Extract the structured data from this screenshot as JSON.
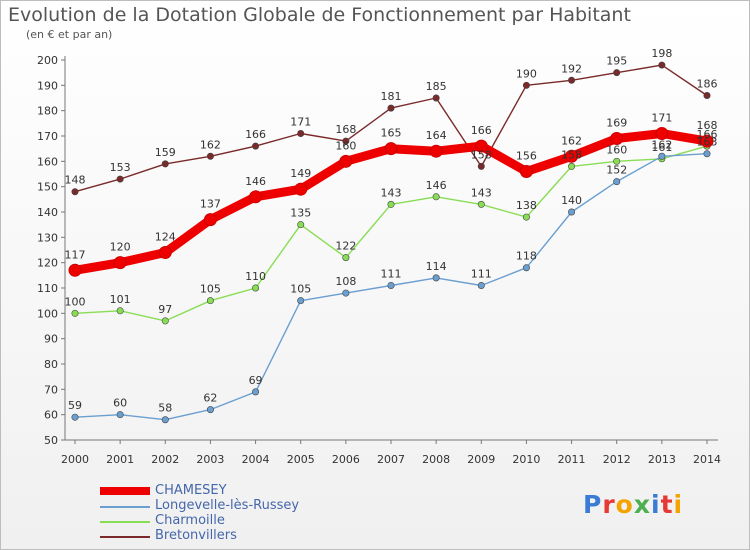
{
  "title": "Evolution de la Dotation Globale de Fonctionnement par Habitant",
  "subtitle": "(en € et par an)",
  "logo": {
    "text": "Proxiti",
    "letter_colors": [
      "#3a7bd5",
      "#e53935",
      "#f4a300",
      "#4caf50",
      "#3a7bd5",
      "#e53935",
      "#f4a300"
    ]
  },
  "chart_data": {
    "type": "line",
    "x": [
      "2000",
      "2001",
      "2002",
      "2003",
      "2004",
      "2005",
      "2006",
      "2007",
      "2008",
      "2009",
      "2010",
      "2011",
      "2012",
      "2013",
      "2014"
    ],
    "ylim": [
      50,
      200
    ],
    "yticks": [
      50,
      60,
      70,
      80,
      90,
      100,
      110,
      120,
      130,
      140,
      150,
      160,
      170,
      180,
      190,
      200
    ],
    "grid": false,
    "legend_position": "bottom-left",
    "series": [
      {
        "name": "Bretonvillers",
        "color": "#7a2a2a",
        "values": [
          148,
          153,
          159,
          162,
          166,
          171,
          168,
          181,
          185,
          158,
          190,
          192,
          195,
          198,
          186
        ],
        "labels": [
          "148",
          "153",
          "159",
          "162",
          "166",
          "171",
          "168",
          "181",
          "185",
          "158",
          "190",
          "192",
          "195",
          "198",
          "186"
        ]
      },
      {
        "name": "Charmoille",
        "color": "#88dd55",
        "values": [
          100,
          101,
          97,
          105,
          110,
          135,
          122,
          143,
          146,
          143,
          138,
          158,
          160,
          161,
          166
        ],
        "labels": [
          "100",
          "101",
          "97",
          "105",
          "110",
          "135",
          "122",
          "143",
          "146",
          "143",
          "138",
          "158",
          "160",
          "161",
          "166"
        ]
      },
      {
        "name": "Longevelle-lès-Russey",
        "color": "#6a9fd0",
        "values": [
          59,
          60,
          58,
          62,
          69,
          105,
          108,
          111,
          114,
          111,
          118,
          140,
          152,
          162,
          163
        ],
        "labels": [
          "59",
          "60",
          "58",
          "62",
          "69",
          "105",
          "108",
          "111",
          "114",
          "111",
          "118",
          "140",
          "152",
          "162",
          "163"
        ]
      },
      {
        "name": "CHAMESEY",
        "color": "#ee0000",
        "values": [
          117,
          120,
          124,
          137,
          146,
          149,
          160,
          165,
          164,
          166,
          156,
          162,
          169,
          171,
          168
        ],
        "labels": [
          "117",
          "120",
          "124",
          "137",
          "146",
          "149",
          "160",
          "165",
          "164",
          "166",
          "156",
          "162",
          "169",
          "171",
          "168"
        ]
      }
    ],
    "legend": [
      "CHAMESEY",
      "Longevelle-lès-Russey",
      "Charmoille",
      "Bretonvillers"
    ]
  }
}
